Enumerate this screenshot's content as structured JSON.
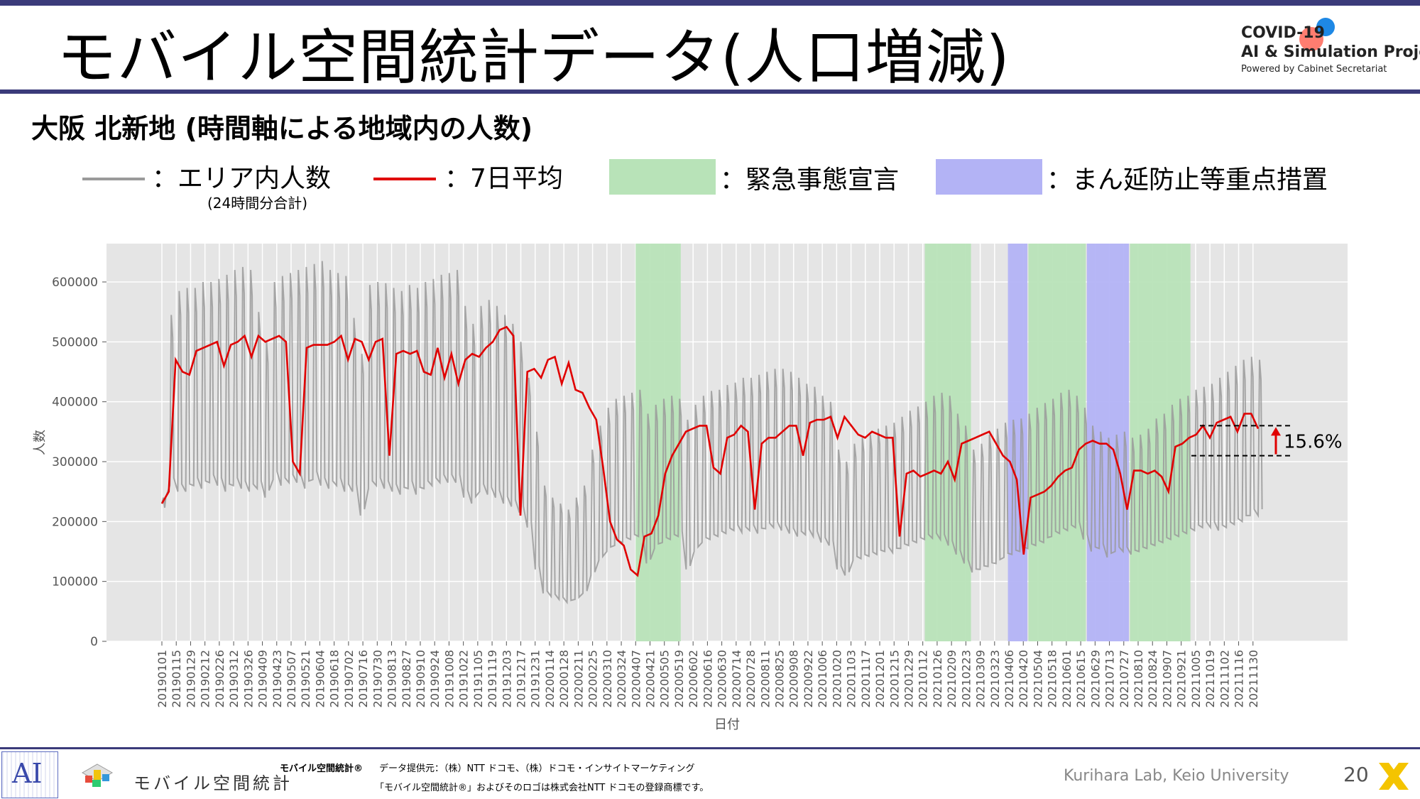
{
  "header": {
    "title": "モバイル空間統計データ(人口増減)",
    "logo_line1": "COVID-19",
    "logo_line2": "AI & Simulation Project",
    "logo_line3": "Powered by Cabinet Secretariat"
  },
  "subtitle": "大阪 北新地 (時間軸による地域内の人数)",
  "legend": {
    "area_people": "：エリア内人数",
    "area_people_note": "(24時間分合計)",
    "avg7": "：7日平均",
    "emergency": "：緊急事態宣言",
    "priority": "：まん延防止等重点措置"
  },
  "colors": {
    "raw": "#9a9a9a",
    "avg": "#e00000",
    "emergency": "#b8e3b8",
    "priority": "#b3b3f5",
    "panel": "#e5e5e5",
    "accent": "#3b3b7a"
  },
  "chart_data": {
    "type": "line",
    "xlabel": "日付",
    "ylabel": "人数",
    "ylim": [
      0,
      650000
    ],
    "yticks": [
      0,
      100000,
      200000,
      300000,
      400000,
      500000,
      600000
    ],
    "ytick_labels": [
      "0",
      "100000",
      "200000",
      "300000",
      "400000",
      "500000",
      "600000"
    ],
    "xtick_labels": [
      "20190101",
      "20190115",
      "20190129",
      "20190212",
      "20190226",
      "20190312",
      "20190326",
      "20190409",
      "20190423",
      "20190507",
      "20190521",
      "20190604",
      "20190618",
      "20190702",
      "20190716",
      "20190730",
      "20190813",
      "20190827",
      "20190910",
      "20190924",
      "20191008",
      "20191022",
      "20191105",
      "20191119",
      "20191203",
      "20191217",
      "20191231",
      "20200114",
      "20200128",
      "20200211",
      "20200225",
      "20200310",
      "20200324",
      "20200407",
      "20200421",
      "20200505",
      "20200519",
      "20200602",
      "20200616",
      "20200630",
      "20200714",
      "20200728",
      "20200811",
      "20200825",
      "20200908",
      "20200922",
      "20201006",
      "20201020",
      "20201103",
      "20201117",
      "20201201",
      "20201215",
      "20201229",
      "20210112",
      "20210126",
      "20210209",
      "20210223",
      "20210309",
      "20210323",
      "20210406",
      "20210420",
      "20210504",
      "20210518",
      "20210601",
      "20210615",
      "20210629",
      "20210713",
      "20210727",
      "20210810",
      "20210824",
      "20210907",
      "20210921",
      "20211005",
      "20211019",
      "20211102",
      "20211116",
      "20211130"
    ],
    "series": [
      {
        "name": "エリア内人数",
        "style": "raw",
        "min_max": [
          [
            230000,
            240000
          ],
          [
            260000,
            545000
          ],
          [
            250000,
            585000
          ],
          [
            250000,
            590000
          ],
          [
            260000,
            590000
          ],
          [
            255000,
            600000
          ],
          [
            265000,
            600000
          ],
          [
            260000,
            605000
          ],
          [
            250000,
            612000
          ],
          [
            260000,
            620000
          ],
          [
            255000,
            625000
          ],
          [
            250000,
            620000
          ],
          [
            255000,
            550000
          ],
          [
            240000,
            500000
          ],
          [
            270000,
            600000
          ],
          [
            260000,
            610000
          ],
          [
            265000,
            615000
          ],
          [
            265000,
            620000
          ],
          [
            255000,
            625000
          ],
          [
            270000,
            630000
          ],
          [
            260000,
            635000
          ],
          [
            255000,
            620000
          ],
          [
            260000,
            615000
          ],
          [
            250000,
            610000
          ],
          [
            250000,
            540000
          ],
          [
            210000,
            480000
          ],
          [
            255000,
            595000
          ],
          [
            260000,
            600000
          ],
          [
            255000,
            598000
          ],
          [
            250000,
            590000
          ],
          [
            245000,
            585000
          ],
          [
            255000,
            595000
          ],
          [
            245000,
            590000
          ],
          [
            255000,
            600000
          ],
          [
            260000,
            605000
          ],
          [
            265000,
            612000
          ],
          [
            265000,
            615000
          ],
          [
            265000,
            620000
          ],
          [
            240000,
            560000
          ],
          [
            230000,
            530000
          ],
          [
            250000,
            560000
          ],
          [
            245000,
            570000
          ],
          [
            240000,
            560000
          ],
          [
            230000,
            545000
          ],
          [
            225000,
            530000
          ],
          [
            215000,
            500000
          ],
          [
            190000,
            440000
          ],
          [
            120000,
            350000
          ],
          [
            80000,
            260000
          ],
          [
            75000,
            240000
          ],
          [
            70000,
            230000
          ],
          [
            65000,
            220000
          ],
          [
            70000,
            240000
          ],
          [
            80000,
            260000
          ],
          [
            110000,
            320000
          ],
          [
            135000,
            360000
          ],
          [
            150000,
            390000
          ],
          [
            160000,
            405000
          ],
          [
            165000,
            410000
          ],
          [
            170000,
            415000
          ],
          [
            175000,
            420000
          ],
          [
            130000,
            380000
          ],
          [
            155000,
            395000
          ],
          [
            165000,
            405000
          ],
          [
            170000,
            410000
          ],
          [
            175000,
            405000
          ],
          [
            120000,
            370000
          ],
          [
            150000,
            395000
          ],
          [
            165000,
            410000
          ],
          [
            170000,
            418000
          ],
          [
            175000,
            420000
          ],
          [
            180000,
            428000
          ],
          [
            185000,
            432000
          ],
          [
            182000,
            440000
          ],
          [
            185000,
            440000
          ],
          [
            180000,
            445000
          ],
          [
            188000,
            450000
          ],
          [
            190000,
            455000
          ],
          [
            185000,
            455000
          ],
          [
            180000,
            450000
          ],
          [
            175000,
            440000
          ],
          [
            178000,
            430000
          ],
          [
            175000,
            425000
          ],
          [
            165000,
            410000
          ],
          [
            160000,
            400000
          ],
          [
            120000,
            320000
          ],
          [
            110000,
            300000
          ],
          [
            135000,
            330000
          ],
          [
            138000,
            340000
          ],
          [
            142000,
            345000
          ],
          [
            145000,
            355000
          ],
          [
            150000,
            360000
          ],
          [
            148000,
            365000
          ],
          [
            155000,
            375000
          ],
          [
            160000,
            385000
          ],
          [
            165000,
            392000
          ],
          [
            170000,
            400000
          ],
          [
            172000,
            410000
          ],
          [
            170000,
            415000
          ],
          [
            160000,
            410000
          ],
          [
            145000,
            380000
          ],
          [
            130000,
            360000
          ],
          [
            115000,
            320000
          ],
          [
            120000,
            330000
          ],
          [
            125000,
            345000
          ],
          [
            130000,
            355000
          ],
          [
            140000,
            365000
          ],
          [
            145000,
            370000
          ],
          [
            150000,
            372000
          ],
          [
            155000,
            380000
          ],
          [
            160000,
            390000
          ],
          [
            165000,
            398000
          ],
          [
            175000,
            405000
          ],
          [
            180000,
            415000
          ],
          [
            185000,
            420000
          ],
          [
            190000,
            410000
          ],
          [
            170000,
            390000
          ],
          [
            150000,
            360000
          ],
          [
            155000,
            350000
          ],
          [
            140000,
            340000
          ],
          [
            150000,
            345000
          ],
          [
            150000,
            350000
          ],
          [
            145000,
            340000
          ],
          [
            150000,
            345000
          ],
          [
            155000,
            355000
          ],
          [
            160000,
            372000
          ],
          [
            165000,
            380000
          ],
          [
            170000,
            395000
          ],
          [
            175000,
            405000
          ],
          [
            180000,
            410000
          ],
          [
            185000,
            420000
          ],
          [
            190000,
            425000
          ],
          [
            190000,
            430000
          ],
          [
            185000,
            440000
          ],
          [
            190000,
            450000
          ],
          [
            195000,
            460000
          ],
          [
            200000,
            470000
          ],
          [
            210000,
            475000
          ],
          [
            210000,
            470000
          ]
        ]
      },
      {
        "name": "7日平均",
        "style": "avg",
        "points": [
          230000,
          250000,
          470000,
          450000,
          445000,
          485000,
          490000,
          495000,
          500000,
          460000,
          495000,
          500000,
          510000,
          475000,
          510000,
          500000,
          505000,
          510000,
          500000,
          300000,
          280000,
          490000,
          495000,
          495000,
          495000,
          500000,
          510000,
          470000,
          505000,
          500000,
          470000,
          500000,
          505000,
          310000,
          480000,
          485000,
          480000,
          485000,
          450000,
          445000,
          490000,
          440000,
          480000,
          430000,
          470000,
          480000,
          475000,
          490000,
          500000,
          520000,
          525000,
          510000,
          210000,
          450000,
          455000,
          440000,
          470000,
          475000,
          430000,
          465000,
          420000,
          415000,
          390000,
          370000,
          290000,
          200000,
          170000,
          160000,
          120000,
          110000,
          175000,
          180000,
          210000,
          280000,
          310000,
          330000,
          350000,
          355000,
          360000,
          360000,
          290000,
          280000,
          340000,
          345000,
          360000,
          350000,
          220000,
          330000,
          340000,
          340000,
          350000,
          360000,
          360000,
          310000,
          365000,
          370000,
          370000,
          375000,
          340000,
          375000,
          360000,
          345000,
          340000,
          350000,
          345000,
          340000,
          340000,
          175000,
          280000,
          285000,
          275000,
          280000,
          285000,
          280000,
          300000,
          270000,
          330000,
          335000,
          340000,
          345000,
          350000,
          330000,
          310000,
          300000,
          270000,
          145000,
          240000,
          245000,
          250000,
          260000,
          275000,
          285000,
          290000,
          320000,
          330000,
          335000,
          330000,
          330000,
          320000,
          280000,
          220000,
          285000,
          285000,
          280000,
          285000,
          275000,
          250000,
          325000,
          330000,
          340000,
          345000,
          360000,
          340000,
          365000,
          370000,
          375000,
          350000,
          380000,
          380000,
          355000
        ]
      }
    ],
    "emergency_periods": [
      [
        "20200407",
        "20200521"
      ],
      [
        "20210114",
        "20210228"
      ],
      [
        "20210425",
        "20210620"
      ],
      [
        "20210802",
        "20210930"
      ]
    ],
    "priority_periods": [
      [
        "20210405",
        "20210424"
      ],
      [
        "20210621",
        "20210801"
      ]
    ],
    "annotation": "15.6%"
  },
  "footer": {
    "brand_text": "モバイル空間統計",
    "brand_small": "モバイル空間統計®",
    "provider": "データ提供元：（株）NTT ドコモ、（株）ドコモ・インサイトマーケティング",
    "trademark": "「モバイル空間統計®」およびそのロゴは株式会社NTT ドコモの登録商標です。",
    "lab": "Kurihara Lab, Keio University",
    "page": "20"
  }
}
